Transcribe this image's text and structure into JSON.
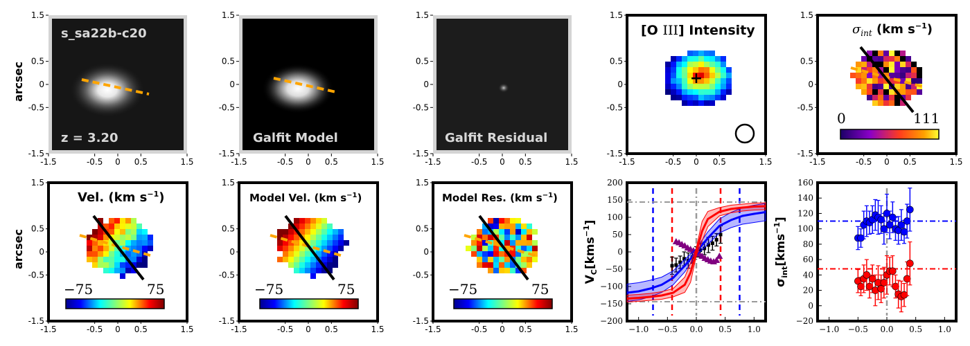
{
  "figure": {
    "row_ylabel": "arcsec",
    "imaging_ticks": [
      "-1.5",
      "-0.5",
      "0",
      "0.5",
      "1.5"
    ],
    "kin_ticks": [
      "-1.5",
      "-0.5",
      "0",
      "0.5",
      "1.5"
    ],
    "colors": {
      "pa_dashed": "#ffa500",
      "frame_gray": "#d0d0d0",
      "blue": "#0000ff",
      "red": "#ff0000",
      "purple": "#800080"
    }
  },
  "panels": {
    "p1": {
      "title": "s_sa22b-c20",
      "sub": "z = 3.20"
    },
    "p2": {
      "title": "Galfit Model"
    },
    "p3": {
      "title": "Galfit Residual"
    },
    "p4": {
      "title_pre": "[O ",
      "title_roman": "III",
      "title_post": "] Intensity"
    },
    "p5": {
      "title_sym": "σ",
      "title_sub": "int",
      "title_unit": " (km s",
      "title_exp": "−1",
      "title_close": ")",
      "cbar_min": "0",
      "cbar_max": "111"
    },
    "p6": {
      "title": "Vel. (km s",
      "title_exp": "−1",
      "title_close": ")",
      "cbar_min": "−75",
      "cbar_max": "75"
    },
    "p7": {
      "title": "Model Vel. (km s",
      "title_exp": "−1",
      "title_close": ")",
      "cbar_min": "−75",
      "cbar_max": "75"
    },
    "p8": {
      "title": "Model Res. (km s",
      "title_exp": "−1",
      "title_close": ")",
      "cbar_min": "−75",
      "cbar_max": "75"
    }
  },
  "chart_data": [
    {
      "type": "line",
      "title": "",
      "ylabel": "V_C [kms^-1]",
      "ylabel_main": "V",
      "ylabel_sub": "C",
      "ylabel_unit": "[kms",
      "ylabel_exp": "−1",
      "ylabel_close": "]",
      "xlim": [
        -1.2,
        1.2
      ],
      "ylim": [
        -200,
        200
      ],
      "x_ticks": [
        -1.0,
        -0.5,
        0.0,
        0.5,
        1.0
      ],
      "x_tick_labels": [
        "−1.0",
        "−0.5",
        "0.0",
        "0.5",
        "1.0"
      ],
      "y_ticks": [
        -200,
        -150,
        -100,
        -50,
        0,
        50,
        100,
        150,
        200
      ],
      "y_tick_labels": [
        "−200",
        "−150",
        "−100",
        "−50",
        "0",
        "50",
        "100",
        "150",
        "200"
      ],
      "series": [
        {
          "name": "observed velocity",
          "color": "#000000",
          "x": [
            -0.42,
            -0.35,
            -0.28,
            -0.21,
            -0.14,
            -0.07,
            0.0,
            0.07,
            0.14,
            0.21,
            0.28,
            0.35,
            0.42
          ],
          "y": [
            -40,
            -38,
            -30,
            -20,
            -25,
            -15,
            0,
            5,
            10,
            20,
            25,
            35,
            50
          ],
          "err": [
            25,
            20,
            18,
            20,
            22,
            18,
            15,
            20,
            18,
            22,
            20,
            18,
            25
          ]
        },
        {
          "name": "major-axis velocity",
          "color": "#800080",
          "x": [
            -0.35,
            -0.3,
            -0.25,
            -0.2,
            -0.15,
            -0.1,
            -0.05,
            0.0,
            0.05,
            0.1,
            0.15,
            0.2,
            0.25,
            0.3,
            0.35,
            0.4
          ],
          "y": [
            30,
            27,
            22,
            18,
            12,
            8,
            4,
            0,
            -6,
            -12,
            -18,
            -22,
            -26,
            -28,
            -24,
            -12
          ]
        },
        {
          "name": "blue model",
          "color": "#0000ff",
          "x": [
            -1.2,
            -1.0,
            -0.8,
            -0.6,
            -0.4,
            -0.2,
            0.0,
            0.2,
            0.4,
            0.6,
            0.8,
            1.0,
            1.2
          ],
          "y": [
            -118,
            -114,
            -106,
            -95,
            -75,
            -40,
            0,
            40,
            75,
            92,
            104,
            110,
            115
          ],
          "band": [
            25,
            25,
            24,
            22,
            20,
            18,
            10,
            18,
            20,
            22,
            24,
            25,
            25
          ]
        },
        {
          "name": "red model",
          "color": "#ff0000",
          "x": [
            -1.2,
            -1.0,
            -0.8,
            -0.6,
            -0.4,
            -0.2,
            -0.1,
            0.0,
            0.1,
            0.2,
            0.4,
            0.6,
            0.8,
            1.0,
            1.2
          ],
          "y": [
            -135,
            -133,
            -130,
            -126,
            -118,
            -95,
            -60,
            0,
            60,
            95,
            116,
            124,
            128,
            131,
            132
          ],
          "band": [
            10,
            10,
            10,
            11,
            12,
            22,
            28,
            12,
            28,
            22,
            12,
            11,
            10,
            10,
            10
          ]
        }
      ],
      "annotations": [
        {
          "type": "vline",
          "x": -0.75,
          "color": "#0000ff",
          "style": "dashed"
        },
        {
          "type": "vline",
          "x": 0.75,
          "color": "#0000ff",
          "style": "dashed"
        },
        {
          "type": "vline",
          "x": -0.42,
          "color": "#ff0000",
          "style": "dashed"
        },
        {
          "type": "vline",
          "x": 0.42,
          "color": "#ff0000",
          "style": "dashed"
        },
        {
          "type": "hline",
          "y": 144,
          "color": "#999999",
          "style": "dashdot"
        },
        {
          "type": "hline",
          "y": -144,
          "color": "#999999",
          "style": "dashdot"
        },
        {
          "type": "vline",
          "x": 0.0,
          "color": "#999999",
          "style": "dashdot"
        }
      ]
    },
    {
      "type": "scatter",
      "title": "",
      "ylabel": "σ_int [kms^-1]",
      "ylabel_main": "σ",
      "ylabel_sub": "int",
      "ylabel_unit": "[kms",
      "ylabel_exp": "−1",
      "ylabel_close": "]",
      "xlim": [
        -1.2,
        1.2
      ],
      "ylim": [
        -20,
        160
      ],
      "x_ticks": [
        -1.0,
        -0.5,
        0.0,
        0.5,
        1.0
      ],
      "x_tick_labels": [
        "−1.0",
        "−0.5",
        "0.0",
        "0.5",
        "1.0"
      ],
      "y_ticks": [
        -20,
        0,
        20,
        40,
        60,
        80,
        100,
        120,
        140,
        160
      ],
      "y_tick_labels": [
        "−20",
        "0",
        "20",
        "40",
        "60",
        "80",
        "100",
        "120",
        "140",
        "160"
      ],
      "series": [
        {
          "name": "sigma blue",
          "color": "#0000ff",
          "x": [
            -0.5,
            -0.45,
            -0.4,
            -0.35,
            -0.3,
            -0.25,
            -0.2,
            -0.15,
            -0.1,
            -0.05,
            0.0,
            0.05,
            0.1,
            0.15,
            0.2,
            0.25,
            0.3,
            0.35,
            0.4
          ],
          "y": [
            88,
            88,
            105,
            110,
            108,
            112,
            118,
            115,
            112,
            100,
            120,
            105,
            115,
            100,
            98,
            105,
            96,
            110,
            125
          ],
          "err": [
            15,
            12,
            18,
            20,
            15,
            18,
            20,
            22,
            18,
            20,
            25,
            18,
            20,
            15,
            18,
            20,
            15,
            22,
            28
          ]
        },
        {
          "name": "sigma red",
          "color": "#ff0000",
          "x": [
            -0.5,
            -0.45,
            -0.4,
            -0.35,
            -0.3,
            -0.25,
            -0.2,
            -0.15,
            -0.1,
            -0.05,
            0.0,
            0.05,
            0.1,
            0.15,
            0.2,
            0.25,
            0.3,
            0.35,
            0.4
          ],
          "y": [
            32,
            25,
            35,
            40,
            25,
            35,
            20,
            30,
            22,
            30,
            40,
            45,
            45,
            25,
            15,
            12,
            14,
            35,
            55
          ],
          "err": [
            15,
            12,
            18,
            20,
            15,
            18,
            20,
            22,
            18,
            20,
            25,
            18,
            20,
            15,
            18,
            20,
            15,
            22,
            28
          ]
        }
      ],
      "annotations": [
        {
          "type": "hline",
          "y": 110,
          "color": "#0000ff",
          "style": "dashdot"
        },
        {
          "type": "hline",
          "y": 48,
          "color": "#ff0000",
          "style": "dashdot"
        },
        {
          "type": "vline",
          "x": 0.0,
          "color": "#999999",
          "style": "dashdot"
        }
      ]
    }
  ]
}
